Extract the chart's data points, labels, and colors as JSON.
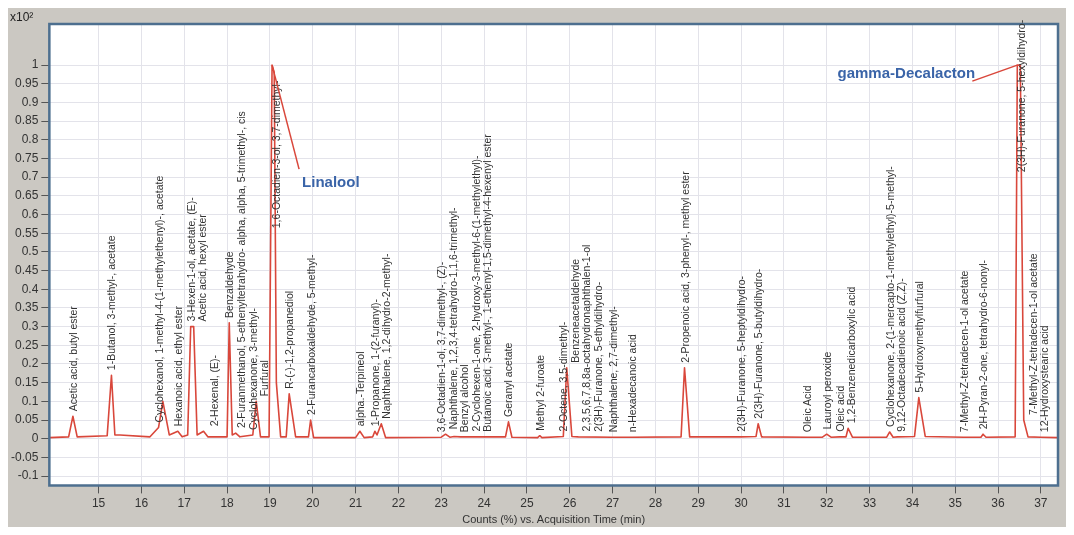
{
  "chart_data": {
    "type": "line",
    "xlabel": "Counts (%) vs. Acquisition Time (min)",
    "ylabel": "x10²",
    "xlim": [
      13.85,
      37.4
    ],
    "ylim": [
      -0.125,
      1.11
    ],
    "xticks": [
      15,
      16,
      17,
      18,
      19,
      20,
      21,
      22,
      23,
      24,
      25,
      26,
      27,
      28,
      29,
      30,
      31,
      32,
      33,
      34,
      35,
      36,
      37
    ],
    "yticks": [
      -0.1,
      -0.05,
      0,
      0.05,
      0.1,
      0.15,
      0.2,
      0.25,
      0.3,
      0.35,
      0.4,
      0.45,
      0.5,
      0.55,
      0.6,
      0.65,
      0.7,
      0.75,
      0.8,
      0.85,
      0.9,
      0.95,
      1
    ],
    "grid": true,
    "marker": "none",
    "line_style": "solid",
    "series": [
      {
        "color": "#d9473b",
        "x": [
          13.85,
          14.3,
          14.4,
          14.5,
          15.2,
          15.3,
          15.38,
          15.5,
          16.2,
          16.4,
          16.5,
          16.65,
          16.85,
          16.95,
          17.08,
          17.15,
          17.22,
          17.3,
          17.45,
          17.55,
          18.0,
          18.05,
          18.12,
          18.2,
          18.3,
          18.6,
          18.68,
          18.78,
          18.98,
          19.05,
          19.1,
          19.15,
          19.25,
          19.38,
          19.45,
          19.6,
          19.9,
          19.95,
          20.02,
          21.0,
          21.1,
          21.2,
          21.4,
          21.45,
          21.5,
          21.6,
          21.7,
          23.0,
          23.1,
          23.2,
          23.3,
          23.45,
          24.5,
          24.57,
          24.65,
          25.25,
          25.3,
          25.35,
          25.85,
          25.93,
          26.05,
          26.2,
          27.0,
          27.45,
          28.6,
          28.68,
          28.8,
          30.0,
          30.35,
          30.4,
          30.48,
          31.55,
          31.9,
          32.0,
          32.1,
          32.3,
          32.45,
          32.5,
          32.6,
          33.4,
          33.47,
          33.55,
          33.65,
          34.05,
          34.15,
          34.3,
          35.2,
          35.6,
          35.65,
          35.72,
          36.4,
          36.45,
          36.52,
          36.6,
          36.7,
          37.0,
          37.4
        ],
        "values": [
          0.003,
          0.005,
          0.06,
          0.005,
          0.008,
          0.17,
          0.01,
          0.01,
          0.005,
          0.03,
          0.1,
          0.01,
          0.02,
          0.005,
          0.01,
          0.3,
          0.3,
          0.01,
          0.02,
          0.005,
          0.005,
          0.31,
          0.01,
          0.015,
          0.005,
          0.01,
          0.1,
          0.005,
          0.005,
          1.0,
          0.98,
          0.15,
          0.005,
          0.005,
          0.12,
          0.005,
          0.005,
          0.05,
          0.003,
          0.003,
          0.02,
          0.003,
          0.005,
          0.02,
          0.01,
          0.04,
          0.003,
          0.004,
          0.012,
          0.004,
          0.006,
          0.005,
          0.005,
          0.045,
          0.004,
          0.003,
          0.008,
          0.003,
          0.006,
          0.19,
          0.006,
          0.005,
          0.004,
          0.004,
          0.005,
          0.19,
          0.005,
          0.005,
          0.006,
          0.04,
          0.005,
          0.004,
          0.004,
          0.012,
          0.004,
          0.005,
          0.005,
          0.028,
          0.004,
          0.004,
          0.018,
          0.004,
          0.005,
          0.006,
          0.11,
          0.006,
          0.004,
          0.004,
          0.012,
          0.004,
          0.005,
          1.0,
          1.0,
          0.05,
          0.005,
          0.004,
          0.003
        ]
      }
    ],
    "annotations": [
      {
        "text": "Acetic acid, butyl ester",
        "x": 14.4,
        "y": 0.06
      },
      {
        "text": "1-Butanol, 3-methyl-, acetate",
        "x": 15.3,
        "y": 0.17
      },
      {
        "text": "Cyclohexanol, 1-methyl-4-(1-methylethenyl)-, acetate",
        "x": 16.4,
        "y": 0.03
      },
      {
        "text": "Hexanoic acid, ethyl ester",
        "x": 16.85,
        "y": 0.02
      },
      {
        "text": "3-Hexen-1-ol, acetate, (E)-",
        "x": 17.15,
        "y": 0.3
      },
      {
        "text": "Acetic acid, hexyl ester",
        "x": 17.22,
        "y": 0.3
      },
      {
        "text": "2-Hexenal, (E)-",
        "x": 17.45,
        "y": 0.02
      },
      {
        "text": "Benzaldehyde",
        "x": 18.05,
        "y": 0.31
      },
      {
        "text": "2-Furanmethanol, 5-ethenyltetrahydro- alpha, alpha, 5-trimethyl-, cis",
        "x": 18.2,
        "y": 0.015
      },
      {
        "text": "Cyclohexanone, 3-methyl-",
        "x": 18.6,
        "y": 0.01
      },
      {
        "text": "Furfural",
        "x": 18.68,
        "y": 0.1
      },
      {
        "text": "1,6-Octadien-3-ol, 3,7-dimethyl-",
        "x": 19.126,
        "y": 0.55
      },
      {
        "text": "R-(-)-1,2-propanediol",
        "x": 19.45,
        "y": 0.12
      },
      {
        "text": "2-Furancarboxaldehyde, 5-methyl-",
        "x": 19.95,
        "y": 0.05
      },
      {
        "text": "alpha.-Terpineol",
        "x": 21.1,
        "y": 0.02
      },
      {
        "text": "1-Propanone, 1-(2-furanyl)-",
        "x": 21.45,
        "y": 0.02
      },
      {
        "text": "Naphthalene, 1,2-dihydro-2-methyl-",
        "x": 21.6,
        "y": 0.04
      },
      {
        "text": "3,6-Octadien-1-ol, 3,7-dimethyl-, (Z)-",
        "x": 23.0,
        "y": 0.004
      },
      {
        "text": "Naphthalene, 1,2,3,4-tetrahydro-1,1,6-trimethyl-",
        "x": 23.1,
        "y": 0.012
      },
      {
        "text": "Benzyl alcohol",
        "x": 23.2,
        "y": 0.004
      },
      {
        "text": "2-Cyclohexen-1-one, 2-hydroxy-3-methyl-6-(1-methylethyl)-",
        "x": 23.3,
        "y": 0.006
      },
      {
        "text": "Butanoic acid, 3-methyl-, 1-ethenyl-1,5-dimethyl-4-hexenyl ester",
        "x": 23.45,
        "y": 0.005
      },
      {
        "text": "Geranyl acetate",
        "x": 24.57,
        "y": 0.045
      },
      {
        "text": "Methyl 2-furoate",
        "x": 25.3,
        "y": 0.008
      },
      {
        "text": "2-Octene, 3,5-dimethyl-",
        "x": 25.85,
        "y": 0.006
      },
      {
        "text": "Benzeneacetaldehyde",
        "x": 25.93,
        "y": 0.19
      },
      {
        "text": "2,3,5,6,7,8,8a-octahydronaphthalen-1-ol",
        "x": 26.05,
        "y": 0.006
      },
      {
        "text": "2(3H)-Furanone, 5-ethyldihydro-",
        "x": 26.2,
        "y": 0.005
      },
      {
        "text": "Naphthalene, 2,7-dimethyl-",
        "x": 27.0,
        "y": 0.004
      },
      {
        "text": "n-Hexadecanoic acid",
        "x": 27.45,
        "y": 0.004
      },
      {
        "text": "2-Propenoic acid, 3-phenyl-, methyl ester",
        "x": 28.68,
        "y": 0.19
      },
      {
        "text": "2(3H)-Furanone, 5-heptyldihydro-",
        "x": 30.0,
        "y": 0.005
      },
      {
        "text": "2(3H)-Furanone, 5-butyldihydro-",
        "x": 30.4,
        "y": 0.04
      },
      {
        "text": "Oleic Acid",
        "x": 31.55,
        "y": 0.004
      },
      {
        "text": "Lauroyl peroxide",
        "x": 32.0,
        "y": 0.012
      },
      {
        "text": "Oleic acid",
        "x": 32.3,
        "y": 0.005
      },
      {
        "text": "1,2-Benzenedicarboxylic acid",
        "x": 32.5,
        "y": 0.028
      },
      {
        "text": "Cyclohexanone, 2-(1-mercapto-1-methylethyl)-5-methyl-",
        "x": 33.47,
        "y": 0.018
      },
      {
        "text": "9,12-Octadecadienoic acid (Z,Z)-",
        "x": 33.65,
        "y": 0.005
      },
      {
        "text": "5-Hydroxymethylfurfural",
        "x": 34.15,
        "y": 0.11
      },
      {
        "text": "7-Methyl-Z-tetradecen-1-ol acetate",
        "x": 35.2,
        "y": 0.004
      },
      {
        "text": "2H-Pyran-2-one, tetrahydro-6-nonyl-",
        "x": 35.65,
        "y": 0.012
      },
      {
        "text": "2(3H)-Furanone, 5-hexyldihydro-",
        "x": 36.545,
        "y": 0.7
      },
      {
        "text": "7-Methyl-Z-tetradecen-1-ol acetate",
        "x": 36.6,
        "y": 0.05
      },
      {
        "text": "12-Hydroxystearic acid",
        "x": 37.0,
        "y": 0.004
      },
      {
        "text": "Linalool",
        "x": 19.05,
        "y": 1.0
      },
      {
        "text": "gamma-Decalacton",
        "x": 36.45,
        "y": 1.0
      }
    ]
  }
}
